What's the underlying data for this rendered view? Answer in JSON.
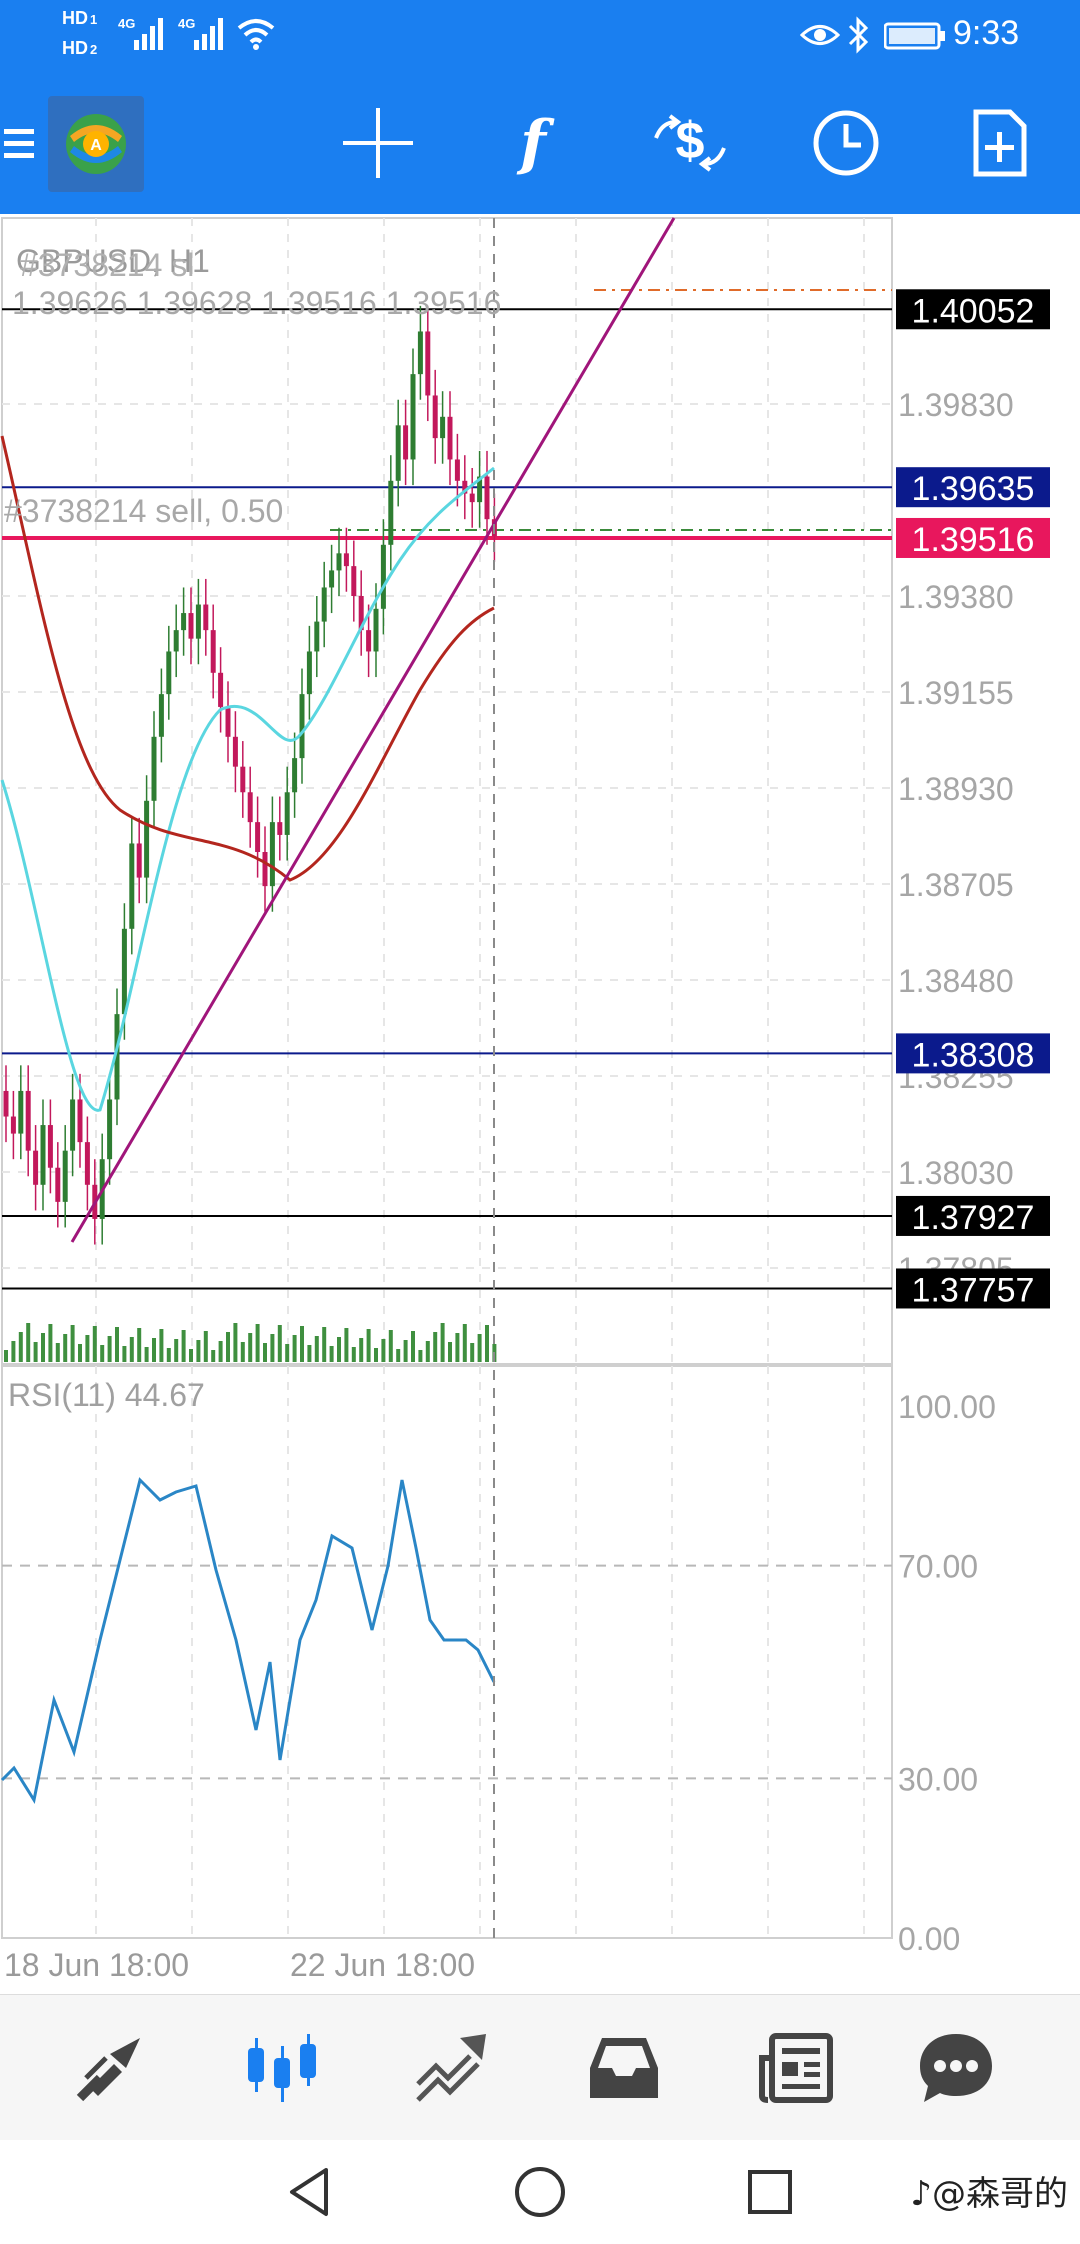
{
  "status_bar": {
    "time": "9:33",
    "sim1": "HD",
    "sim1_index": "1",
    "sim2": "HD",
    "sim2_index": "2",
    "net1": "4G",
    "net2": "4G"
  },
  "toolbar": {
    "icons": [
      "menu-icon",
      "app-logo",
      "crosshair-icon",
      "indicators-icon",
      "symbols-icon",
      "timeframe-icon",
      "objects-icon"
    ],
    "indicator_glyph": "f"
  },
  "chart": {
    "symbol_title": "GBPUSD, H1",
    "ohlc": "1.39626 1.39628 1.39516 1.39516",
    "order_sl_label": "#3738214 sl",
    "order_label": "#3738214 sell, 0.50",
    "price_scale": [
      "1.39830",
      "1.39380",
      "1.39155",
      "1.38930",
      "1.38705",
      "1.38480",
      "1.38255",
      "1.38030",
      "1.37805"
    ],
    "price_tags": [
      {
        "value": "1.40052",
        "bg": "#000000"
      },
      {
        "value": "1.39635",
        "bg": "#0b1a8c"
      },
      {
        "value": "1.39516",
        "bg": "#e8175d"
      },
      {
        "value": "1.38308",
        "bg": "#0b1a8c"
      },
      {
        "value": "1.37927",
        "bg": "#000000"
      },
      {
        "value": "1.37757",
        "bg": "#000000"
      }
    ],
    "rsi_label": "RSI(11) 44.67",
    "rsi_scale": [
      "100.00",
      "70.00",
      "30.00",
      "0.00"
    ],
    "time_labels": [
      "18 Jun 18:00",
      "22 Jun 18:00"
    ],
    "colors": {
      "bull": "#2e7d32",
      "bear": "#c2185b",
      "ma_fast": "#5ad6e0",
      "ma_slow": "#b3261e",
      "trendline": "#a0157a",
      "rsi": "#2a86c6"
    }
  },
  "bottom_nav": {
    "items": [
      "quotes-icon",
      "chart-icon",
      "trade-icon",
      "history-icon",
      "news-icon",
      "chat-icon"
    ],
    "active": "chart-icon"
  },
  "system_nav": {
    "items": [
      "back-icon",
      "home-icon",
      "recents-icon"
    ],
    "watermark": "♪@森哥的"
  }
}
